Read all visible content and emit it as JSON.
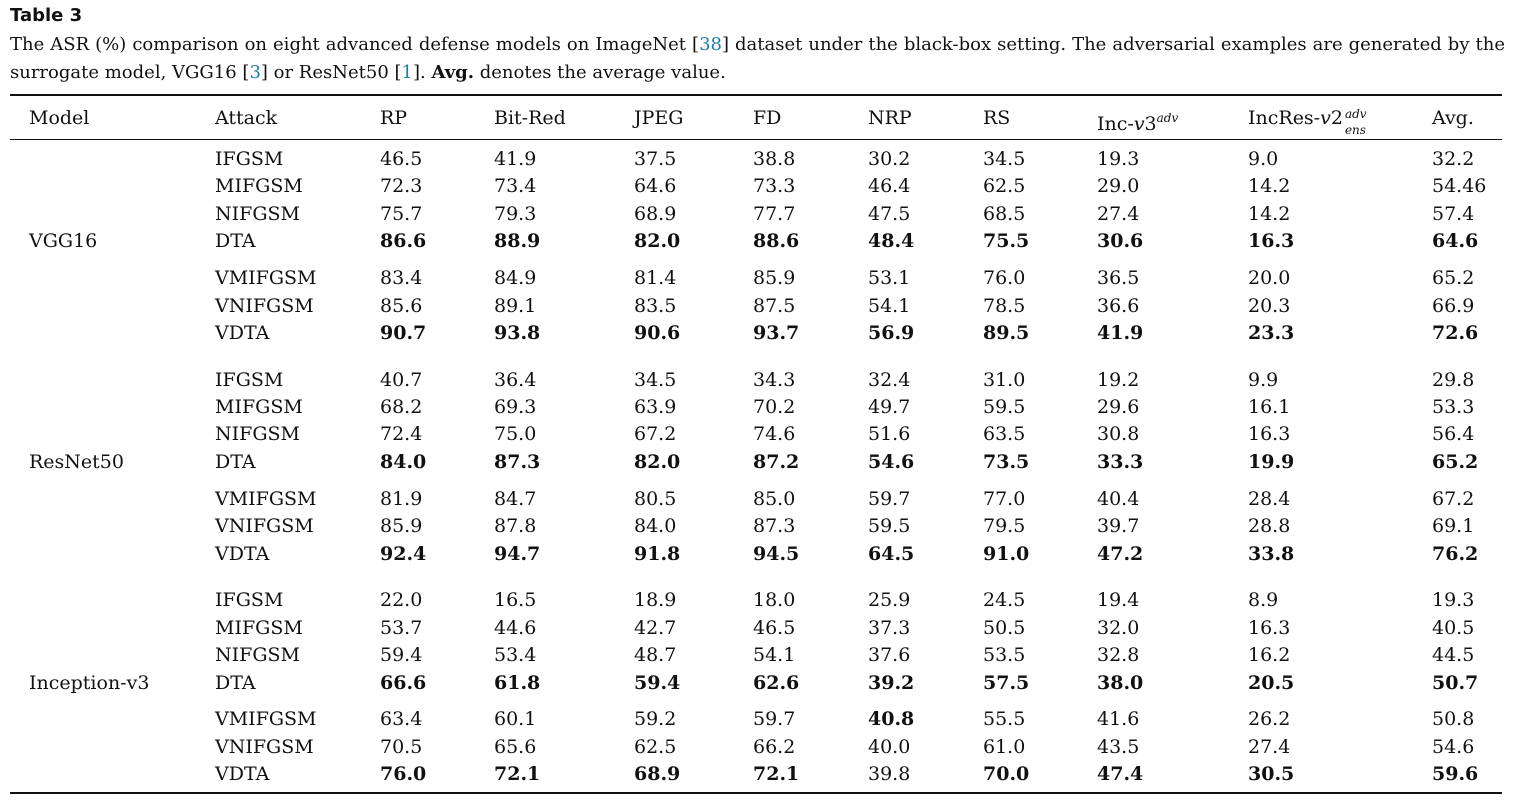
{
  "table_label": "Table 3",
  "caption": {
    "part1": "The ASR (%) comparison on eight advanced defense models on ImageNet [",
    "ref1": "38",
    "part2": "] dataset under the black-box setting. The adversarial examples are generated by the surrogate model, VGG16 [",
    "ref2": "3",
    "part3": "] or ResNet50 [",
    "ref3": "1",
    "part4": "]. ",
    "bold": "Avg.",
    "part5": " denotes the average value."
  },
  "headers": {
    "model": "Model",
    "attack": "Attack",
    "rp": "RP",
    "bitred": "Bit-Red",
    "jpeg": "JPEG",
    "fd": "FD",
    "nrp": "NRP",
    "rs": "RS",
    "inc_prefix": "Inc-",
    "inc_v": "v",
    "inc_num": "3",
    "inc_sup": "adv",
    "incres_prefix": "IncRes-",
    "incres_v": "v",
    "incres_num": "2",
    "incres_sup": "adv",
    "incres_sub": "ens",
    "avg": "Avg."
  },
  "groups": [
    {
      "model": "VGG16",
      "rows": [
        {
          "attack": "IFGSM",
          "values": [
            "46.5",
            "41.9",
            "37.5",
            "38.8",
            "30.2",
            "34.5",
            "19.3",
            "9.0",
            "32.2"
          ],
          "bold": [
            false,
            false,
            false,
            false,
            false,
            false,
            false,
            false,
            false
          ]
        },
        {
          "attack": "MIFGSM",
          "values": [
            "72.3",
            "73.4",
            "64.6",
            "73.3",
            "46.4",
            "62.5",
            "29.0",
            "14.2",
            "54.46"
          ],
          "bold": [
            false,
            false,
            false,
            false,
            false,
            false,
            false,
            false,
            false
          ]
        },
        {
          "attack": "NIFGSM",
          "values": [
            "75.7",
            "79.3",
            "68.9",
            "77.7",
            "47.5",
            "68.5",
            "27.4",
            "14.2",
            "57.4"
          ],
          "bold": [
            false,
            false,
            false,
            false,
            false,
            false,
            false,
            false,
            false
          ]
        },
        {
          "attack": "DTA",
          "values": [
            "86.6",
            "88.9",
            "82.0",
            "88.6",
            "48.4",
            "75.5",
            "30.6",
            "16.3",
            "64.6"
          ],
          "bold": [
            true,
            true,
            true,
            true,
            true,
            true,
            true,
            true,
            true
          ]
        },
        {
          "attack": "VMIFGSM",
          "values": [
            "83.4",
            "84.9",
            "81.4",
            "85.9",
            "53.1",
            "76.0",
            "36.5",
            "20.0",
            "65.2"
          ],
          "bold": [
            false,
            false,
            false,
            false,
            false,
            false,
            false,
            false,
            false
          ]
        },
        {
          "attack": "VNIFGSM",
          "values": [
            "85.6",
            "89.1",
            "83.5",
            "87.5",
            "54.1",
            "78.5",
            "36.6",
            "20.3",
            "66.9"
          ],
          "bold": [
            false,
            false,
            false,
            false,
            false,
            false,
            false,
            false,
            false
          ]
        },
        {
          "attack": "VDTA",
          "values": [
            "90.7",
            "93.8",
            "90.6",
            "93.7",
            "56.9",
            "89.5",
            "41.9",
            "23.3",
            "72.6"
          ],
          "bold": [
            true,
            true,
            true,
            true,
            true,
            true,
            true,
            true,
            true
          ]
        }
      ]
    },
    {
      "model": "ResNet50",
      "rows": [
        {
          "attack": "IFGSM",
          "values": [
            "40.7",
            "36.4",
            "34.5",
            "34.3",
            "32.4",
            "31.0",
            "19.2",
            "9.9",
            "29.8"
          ],
          "bold": [
            false,
            false,
            false,
            false,
            false,
            false,
            false,
            false,
            false
          ]
        },
        {
          "attack": "MIFGSM",
          "values": [
            "68.2",
            "69.3",
            "63.9",
            "70.2",
            "49.7",
            "59.5",
            "29.6",
            "16.1",
            "53.3"
          ],
          "bold": [
            false,
            false,
            false,
            false,
            false,
            false,
            false,
            false,
            false
          ]
        },
        {
          "attack": "NIFGSM",
          "values": [
            "72.4",
            "75.0",
            "67.2",
            "74.6",
            "51.6",
            "63.5",
            "30.8",
            "16.3",
            "56.4"
          ],
          "bold": [
            false,
            false,
            false,
            false,
            false,
            false,
            false,
            false,
            false
          ]
        },
        {
          "attack": "DTA",
          "values": [
            "84.0",
            "87.3",
            "82.0",
            "87.2",
            "54.6",
            "73.5",
            "33.3",
            "19.9",
            "65.2"
          ],
          "bold": [
            true,
            true,
            true,
            true,
            true,
            true,
            true,
            true,
            true
          ]
        },
        {
          "attack": "VMIFGSM",
          "values": [
            "81.9",
            "84.7",
            "80.5",
            "85.0",
            "59.7",
            "77.0",
            "40.4",
            "28.4",
            "67.2"
          ],
          "bold": [
            false,
            false,
            false,
            false,
            false,
            false,
            false,
            false,
            false
          ]
        },
        {
          "attack": "VNIFGSM",
          "values": [
            "85.9",
            "87.8",
            "84.0",
            "87.3",
            "59.5",
            "79.5",
            "39.7",
            "28.8",
            "69.1"
          ],
          "bold": [
            false,
            false,
            false,
            false,
            false,
            false,
            false,
            false,
            false
          ]
        },
        {
          "attack": "VDTA",
          "values": [
            "92.4",
            "94.7",
            "91.8",
            "94.5",
            "64.5",
            "91.0",
            "47.2",
            "33.8",
            "76.2"
          ],
          "bold": [
            true,
            true,
            true,
            true,
            true,
            true,
            true,
            true,
            true
          ]
        }
      ]
    },
    {
      "model": "Inception-v3",
      "rows": [
        {
          "attack": "IFGSM",
          "values": [
            "22.0",
            "16.5",
            "18.9",
            "18.0",
            "25.9",
            "24.5",
            "19.4",
            "8.9",
            "19.3"
          ],
          "bold": [
            false,
            false,
            false,
            false,
            false,
            false,
            false,
            false,
            false
          ]
        },
        {
          "attack": "MIFGSM",
          "values": [
            "53.7",
            "44.6",
            "42.7",
            "46.5",
            "37.3",
            "50.5",
            "32.0",
            "16.3",
            "40.5"
          ],
          "bold": [
            false,
            false,
            false,
            false,
            false,
            false,
            false,
            false,
            false
          ]
        },
        {
          "attack": "NIFGSM",
          "values": [
            "59.4",
            "53.4",
            "48.7",
            "54.1",
            "37.6",
            "53.5",
            "32.8",
            "16.2",
            "44.5"
          ],
          "bold": [
            false,
            false,
            false,
            false,
            false,
            false,
            false,
            false,
            false
          ]
        },
        {
          "attack": "DTA",
          "values": [
            "66.6",
            "61.8",
            "59.4",
            "62.6",
            "39.2",
            "57.5",
            "38.0",
            "20.5",
            "50.7"
          ],
          "bold": [
            true,
            true,
            true,
            true,
            true,
            true,
            true,
            true,
            true
          ]
        },
        {
          "attack": "VMIFGSM",
          "values": [
            "63.4",
            "60.1",
            "59.2",
            "59.7",
            "40.8",
            "55.5",
            "41.6",
            "26.2",
            "50.8"
          ],
          "bold": [
            false,
            false,
            false,
            false,
            true,
            false,
            false,
            false,
            false
          ]
        },
        {
          "attack": "VNIFGSM",
          "values": [
            "70.5",
            "65.6",
            "62.5",
            "66.2",
            "40.0",
            "61.0",
            "43.5",
            "27.4",
            "54.6"
          ],
          "bold": [
            false,
            false,
            false,
            false,
            false,
            false,
            false,
            false,
            false
          ]
        },
        {
          "attack": "VDTA",
          "values": [
            "76.0",
            "72.1",
            "68.9",
            "72.1",
            "39.8",
            "70.0",
            "47.4",
            "30.5",
            "59.6"
          ],
          "bold": [
            true,
            true,
            true,
            true,
            false,
            true,
            true,
            true,
            true
          ]
        }
      ]
    }
  ]
}
